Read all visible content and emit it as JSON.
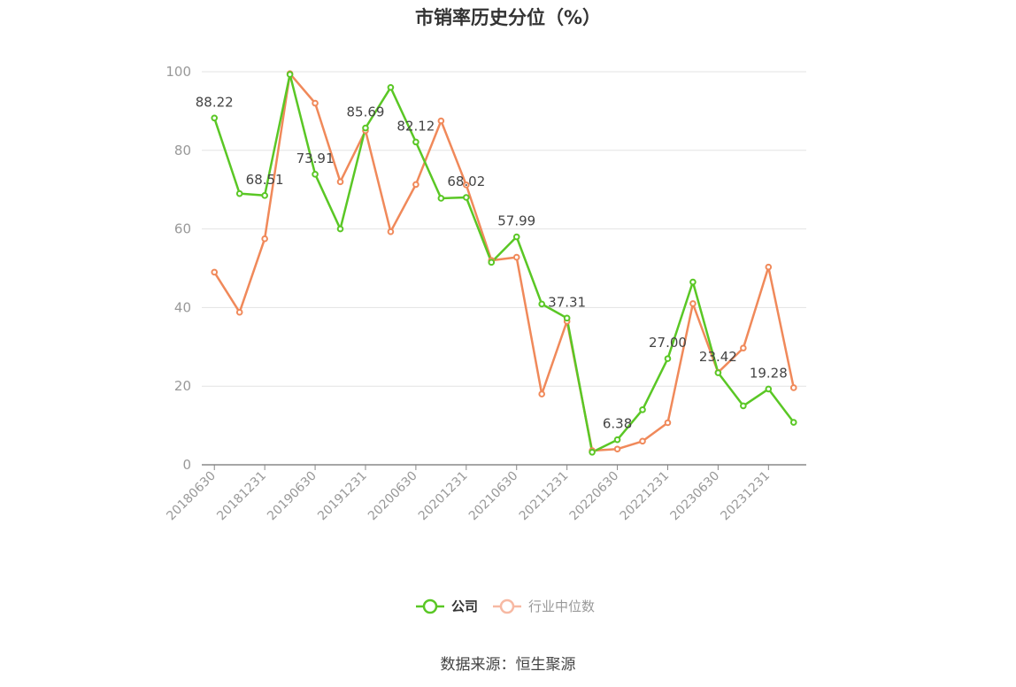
{
  "page": {
    "title": "市销率历史分位（%）",
    "source": "数据来源：恒生聚源"
  },
  "chart_data": {
    "type": "line",
    "title": "市销率历史分位（%）",
    "xlabel": "",
    "ylabel": "",
    "ylim": [
      0,
      100
    ],
    "yticks": [
      0,
      20,
      40,
      60,
      80,
      100
    ],
    "grid": true,
    "legend_position": "bottom",
    "x": [
      "20180630",
      "20180930",
      "20181231",
      "20190331",
      "20190630",
      "20190930",
      "20191231",
      "20200331",
      "20200630",
      "20200930",
      "20201231",
      "20210331",
      "20210630",
      "20210930",
      "20211231",
      "20220331",
      "20220630",
      "20220930",
      "20221231",
      "20230331",
      "20230630",
      "20230930",
      "20231231",
      "20240331"
    ],
    "xtick_labels": [
      "20180630",
      "20181231",
      "20190630",
      "20191231",
      "20200630",
      "20201231",
      "20210630",
      "20211231",
      "20220630",
      "20221231",
      "20230630",
      "20231231"
    ],
    "series": [
      {
        "name": "公司",
        "color": "#5ac725",
        "values": [
          88.22,
          69.0,
          68.51,
          99.3,
          73.91,
          60.0,
          85.69,
          96.0,
          82.12,
          67.8,
          68.02,
          51.5,
          57.99,
          40.9,
          37.31,
          3.2,
          6.38,
          14.0,
          27.0,
          46.5,
          23.42,
          15.0,
          19.28,
          10.8
        ]
      },
      {
        "name": "行业中位数",
        "color": "#f0895a",
        "values": [
          49.0,
          38.8,
          57.5,
          99.5,
          92.0,
          72.0,
          85.0,
          59.3,
          71.3,
          87.5,
          71.2,
          52.0,
          52.8,
          18.0,
          36.5,
          3.6,
          4.0,
          6.0,
          10.7,
          41.0,
          23.5,
          29.7,
          50.3,
          19.6
        ]
      }
    ],
    "data_labels": [
      {
        "series": 0,
        "index": 0,
        "text": "88.22"
      },
      {
        "series": 0,
        "index": 2,
        "text": "68.51"
      },
      {
        "series": 0,
        "index": 4,
        "text": "73.91"
      },
      {
        "series": 0,
        "index": 6,
        "text": "85.69"
      },
      {
        "series": 0,
        "index": 8,
        "text": "82.12"
      },
      {
        "series": 0,
        "index": 10,
        "text": "68.02"
      },
      {
        "series": 0,
        "index": 12,
        "text": "57.99"
      },
      {
        "series": 0,
        "index": 14,
        "text": "37.31"
      },
      {
        "series": 0,
        "index": 16,
        "text": "6.38"
      },
      {
        "series": 0,
        "index": 18,
        "text": "27.00"
      },
      {
        "series": 0,
        "index": 20,
        "text": "23.42"
      },
      {
        "series": 0,
        "index": 22,
        "text": "19.28"
      }
    ]
  }
}
